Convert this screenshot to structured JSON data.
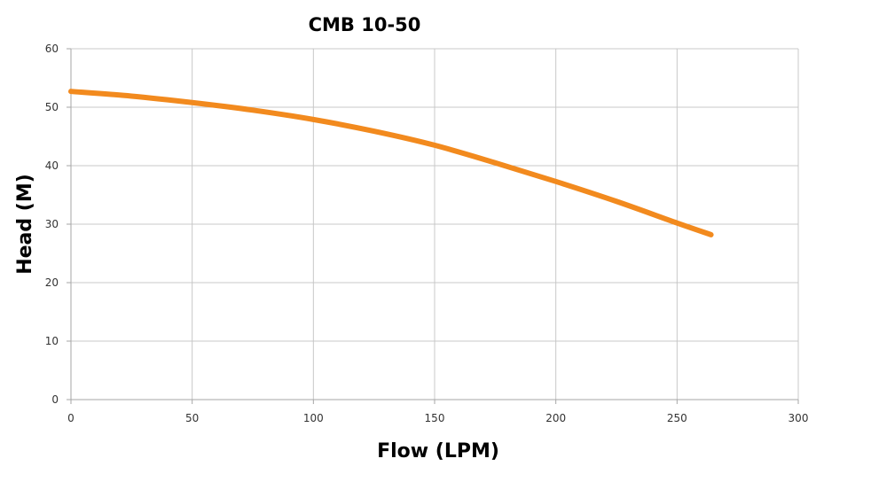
{
  "chart_data": {
    "type": "line",
    "title": "CMB 10-50",
    "xlabel": "Flow (LPM)",
    "ylabel": "Head (M)",
    "xlim": [
      0,
      300
    ],
    "ylim": [
      0,
      60
    ],
    "x_ticks": [
      0,
      50,
      100,
      150,
      200,
      250,
      300
    ],
    "y_ticks": [
      0,
      10,
      20,
      30,
      40,
      50,
      60
    ],
    "grid": true,
    "series": [
      {
        "color": "#f28a1e",
        "x": [
          0,
          25,
          50,
          75,
          100,
          125,
          150,
          175,
          200,
          225,
          250,
          264
        ],
        "y": [
          52.7,
          51.9,
          50.8,
          49.5,
          47.9,
          45.9,
          43.5,
          40.5,
          37.3,
          33.9,
          30.2,
          28.2
        ]
      }
    ]
  }
}
